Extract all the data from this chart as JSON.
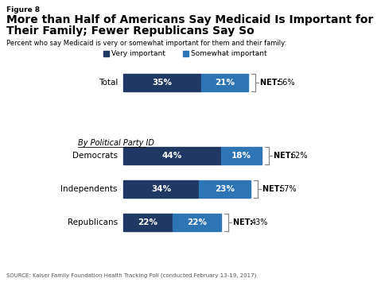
{
  "figure_label": "Figure 8",
  "title_line1": "More than Half of Americans Say Medicaid Is Important for",
  "title_line2": "Their Family; Fewer Republicans Say So",
  "subtitle": "Percent who say Medicaid is very or somewhat important for them and their family:",
  "legend_items": [
    "Very important",
    "Somewhat important"
  ],
  "color_very": "#1F3864",
  "color_somewhat": "#2E75B6",
  "categories": [
    "Total",
    "Democrats",
    "Independents",
    "Republicans"
  ],
  "very_values": [
    35,
    44,
    34,
    22
  ],
  "somewhat_values": [
    21,
    18,
    23,
    22
  ],
  "net_values": [
    "56%",
    "62%",
    "57%",
    "43%"
  ],
  "source": "SOURCE: Kaiser Family Foundation Health Tracking Poll (conducted February 13-19, 2017)",
  "section_label": "By Political Party ID",
  "bg_color": "#ffffff"
}
